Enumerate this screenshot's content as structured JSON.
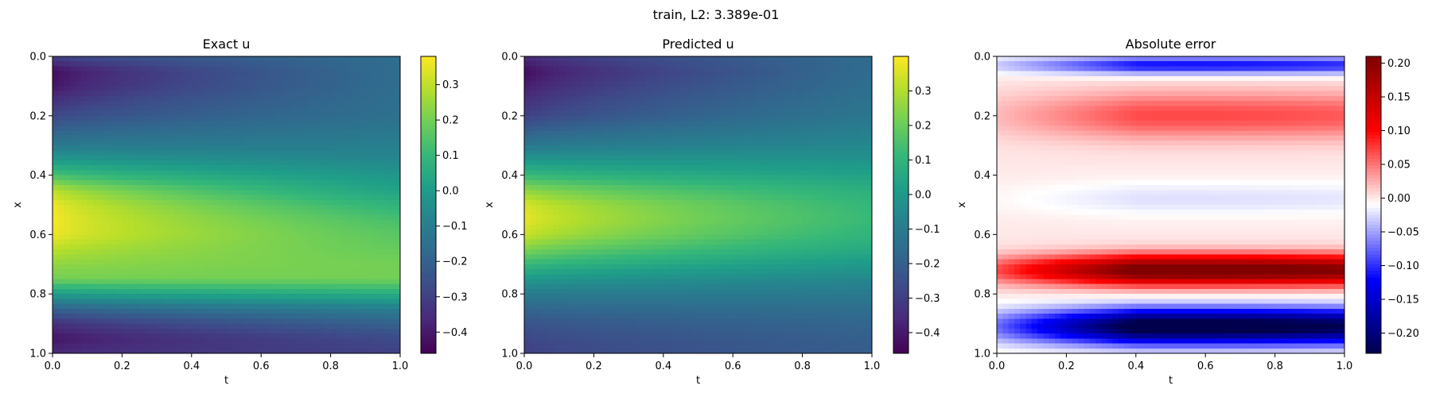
{
  "suptitle": "train, L2: 3.389e-01",
  "chart_data": [
    {
      "type": "heatmap",
      "title": "Exact u",
      "xlabel": "t",
      "ylabel": "x",
      "xlim": [
        0,
        1
      ],
      "ylim": [
        1,
        0
      ],
      "xticks": [
        "0.0",
        "0.2",
        "0.4",
        "0.6",
        "0.8",
        "1.0"
      ],
      "yticks": [
        "0.0",
        "0.2",
        "0.4",
        "0.6",
        "0.8",
        "1.0"
      ],
      "colormap": "viridis",
      "clim": [
        -0.46,
        0.38
      ],
      "colorbar_ticks": [
        "0.3",
        "0.2",
        "0.1",
        "0.0",
        "−0.1",
        "−0.2",
        "−0.3",
        "−0.4"
      ],
      "colorbar_values": [
        0.3,
        0.2,
        0.1,
        0.0,
        -0.1,
        -0.2,
        -0.3,
        -0.4
      ],
      "profile": {
        "x": [
          0.0,
          0.05,
          0.1,
          0.2,
          0.3,
          0.35,
          0.4,
          0.45,
          0.5,
          0.55,
          0.6,
          0.65,
          0.7,
          0.75,
          0.8,
          0.85,
          0.9,
          0.95,
          1.0
        ],
        "u_at_t0": [
          -0.3,
          -0.44,
          -0.42,
          -0.28,
          -0.12,
          0.0,
          0.14,
          0.3,
          0.37,
          0.38,
          0.37,
          0.3,
          0.24,
          0.2,
          0.0,
          -0.2,
          -0.35,
          -0.42,
          -0.36
        ],
        "u_at_t1": [
          -0.16,
          -0.16,
          -0.16,
          -0.15,
          -0.1,
          -0.07,
          -0.02,
          0.02,
          0.08,
          0.13,
          0.16,
          0.18,
          0.2,
          0.2,
          0.06,
          -0.1,
          -0.2,
          -0.27,
          -0.3
        ]
      }
    },
    {
      "type": "heatmap",
      "title": "Predicted u",
      "xlabel": "t",
      "ylabel": "x",
      "xlim": [
        0,
        1
      ],
      "ylim": [
        1,
        0
      ],
      "xticks": [
        "0.0",
        "0.2",
        "0.4",
        "0.6",
        "0.8",
        "1.0"
      ],
      "yticks": [
        "0.0",
        "0.2",
        "0.4",
        "0.6",
        "0.8",
        "1.0"
      ],
      "colormap": "viridis",
      "clim": [
        -0.46,
        0.4
      ],
      "colorbar_ticks": [
        "0.3",
        "0.2",
        "0.1",
        "0.0",
        "−0.1",
        "−0.2",
        "−0.3",
        "−0.4"
      ],
      "colorbar_values": [
        0.3,
        0.2,
        0.1,
        0.0,
        -0.1,
        -0.2,
        -0.3,
        -0.4
      ],
      "profile": {
        "x": [
          0.0,
          0.05,
          0.1,
          0.2,
          0.3,
          0.35,
          0.4,
          0.45,
          0.5,
          0.55,
          0.6,
          0.65,
          0.7,
          0.75,
          0.8,
          0.85,
          0.9,
          0.95,
          1.0
        ],
        "u_at_t0": [
          -0.36,
          -0.44,
          -0.4,
          -0.3,
          -0.12,
          0.0,
          0.12,
          0.26,
          0.36,
          0.38,
          0.34,
          0.24,
          0.12,
          0.0,
          -0.1,
          -0.18,
          -0.24,
          -0.28,
          -0.3
        ],
        "u_at_t1": [
          -0.16,
          -0.16,
          -0.15,
          -0.12,
          -0.06,
          -0.02,
          0.03,
          0.08,
          0.11,
          0.12,
          0.1,
          0.06,
          0.0,
          -0.06,
          -0.11,
          -0.15,
          -0.18,
          -0.2,
          -0.21
        ]
      }
    },
    {
      "type": "heatmap",
      "title": "Absolute error",
      "xlabel": "t",
      "ylabel": "x",
      "xlim": [
        0,
        1
      ],
      "ylim": [
        1,
        0
      ],
      "xticks": [
        "0.0",
        "0.2",
        "0.4",
        "0.6",
        "0.8",
        "1.0"
      ],
      "yticks": [
        "0.0",
        "0.2",
        "0.4",
        "0.6",
        "0.8",
        "1.0"
      ],
      "colormap": "seismic",
      "clim": [
        -0.23,
        0.21
      ],
      "colorbar_ticks": [
        "0.20",
        "0.15",
        "0.10",
        "0.05",
        "0.00",
        "−0.05",
        "−0.10",
        "−0.15",
        "−0.20"
      ],
      "colorbar_values": [
        0.2,
        0.15,
        0.1,
        0.05,
        0.0,
        -0.05,
        -0.1,
        -0.15,
        -0.2
      ],
      "bands": [
        {
          "x_center": 0.03,
          "width": 0.03,
          "peak": -0.1
        },
        {
          "x_center": 0.2,
          "width": 0.08,
          "peak": 0.06
        },
        {
          "x_center": 0.48,
          "width": 0.06,
          "peak": -0.02
        },
        {
          "x_center": 0.72,
          "width": 0.05,
          "peak": 0.2
        },
        {
          "x_center": 0.91,
          "width": 0.06,
          "peak": -0.22
        }
      ]
    }
  ]
}
